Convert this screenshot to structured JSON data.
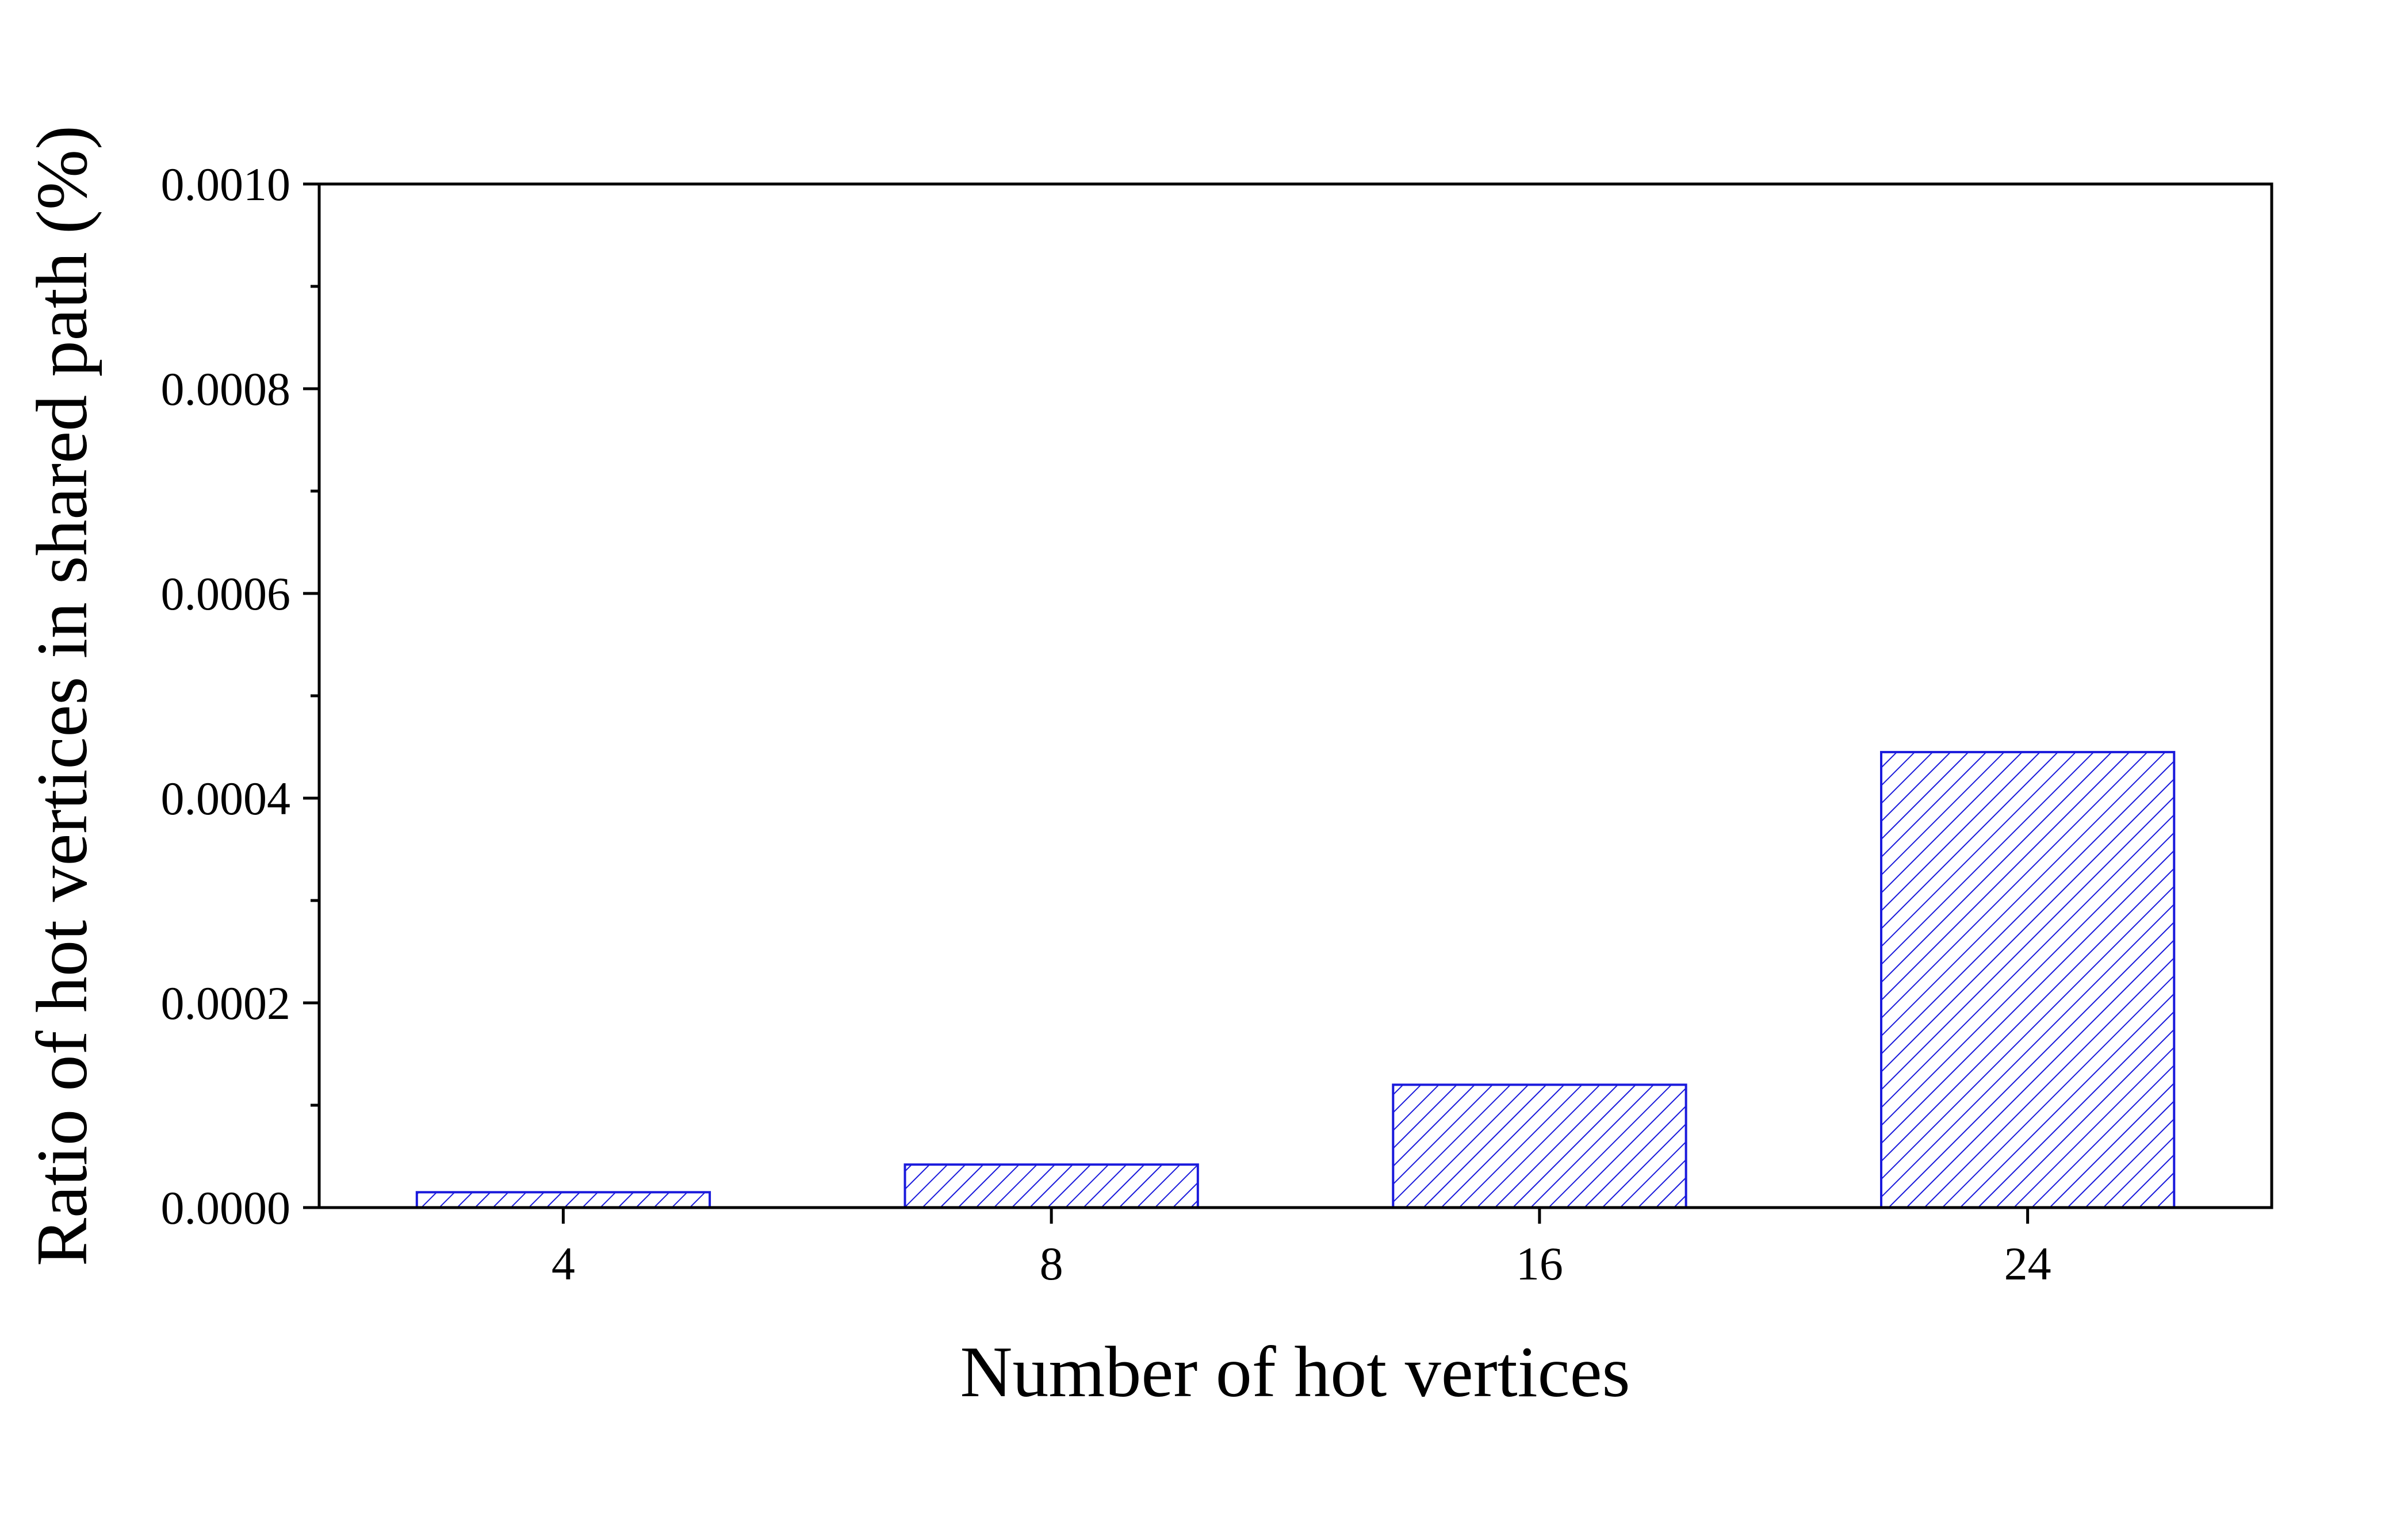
{
  "chart_data": {
    "type": "bar",
    "title": "",
    "xlabel": "Number of hot vertices",
    "ylabel": "Ratio of hot vertices in shared path (%)",
    "categories": [
      "4",
      "8",
      "16",
      "24"
    ],
    "values": [
      1.5e-05,
      4.2e-05,
      0.00012,
      0.000445
    ],
    "ylim": [
      0,
      0.001
    ],
    "yticks": [
      "0.0000",
      "0.0002",
      "0.0004",
      "0.0006",
      "0.0008",
      "0.0010"
    ],
    "ytick_values": [
      0,
      0.0002,
      0.0004,
      0.0006,
      0.0008,
      0.001
    ],
    "bar_fill": "hatched",
    "bar_color": "#1a1adc",
    "grid": false,
    "legend": "none"
  }
}
